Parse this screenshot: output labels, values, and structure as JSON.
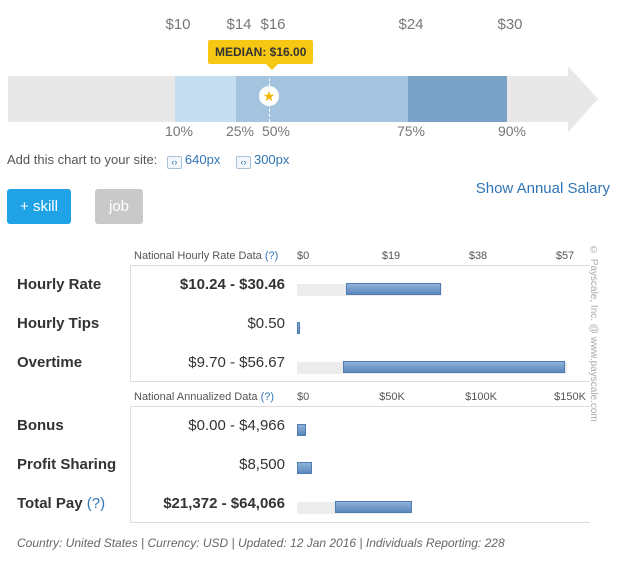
{
  "percentile_chart": {
    "top_values": [
      "$10",
      "$14",
      "$16",
      "$24",
      "$30"
    ],
    "percentiles": [
      "10%",
      "25%",
      "50%",
      "75%",
      "90%"
    ],
    "median_label": "MEDIAN: $16.00",
    "median_icon": "star-icon"
  },
  "embed": {
    "label": "Add this chart to your site:",
    "links": [
      "640px",
      "300px"
    ],
    "icon": "code-icon"
  },
  "buttons": {
    "skill": "+ skill",
    "job": "job"
  },
  "annual_link": "Show Annual Salary",
  "hourly_section": {
    "title": "National Hourly Rate Data",
    "help": "(?)",
    "ticks": [
      "$0",
      "$19",
      "$38",
      "$57"
    ],
    "axis_max": 57,
    "rows": [
      {
        "label": "Hourly Rate",
        "value": "$10.24 - $30.46",
        "low": 10.24,
        "high": 30.46
      },
      {
        "label": "Hourly Tips",
        "value": "$0.50",
        "low": 0,
        "high": 0.5
      },
      {
        "label": "Overtime",
        "value": "$9.70 - $56.67",
        "low": 9.7,
        "high": 56.67
      }
    ]
  },
  "annual_section": {
    "title": "National Annualized Data",
    "help": "(?)",
    "ticks": [
      "$0",
      "$50K",
      "$100K",
      "$150K"
    ],
    "axis_max": 150000,
    "rows": [
      {
        "label": "Bonus",
        "value": "$0.00 - $4,966",
        "low": 0,
        "high": 4966
      },
      {
        "label": "Profit Sharing",
        "value": "$8,500",
        "low": 0,
        "high": 8500
      },
      {
        "label": "Total Pay",
        "help": "(?)",
        "value": "$21,372 - $64,066",
        "low": 21372,
        "high": 64066
      }
    ]
  },
  "footer": "Country: United States | Currency: USD | Updated: 12 Jan 2016 | Individuals Reporting: 228",
  "copyright": "© Payscale, Inc. @ www.payscale.com"
}
